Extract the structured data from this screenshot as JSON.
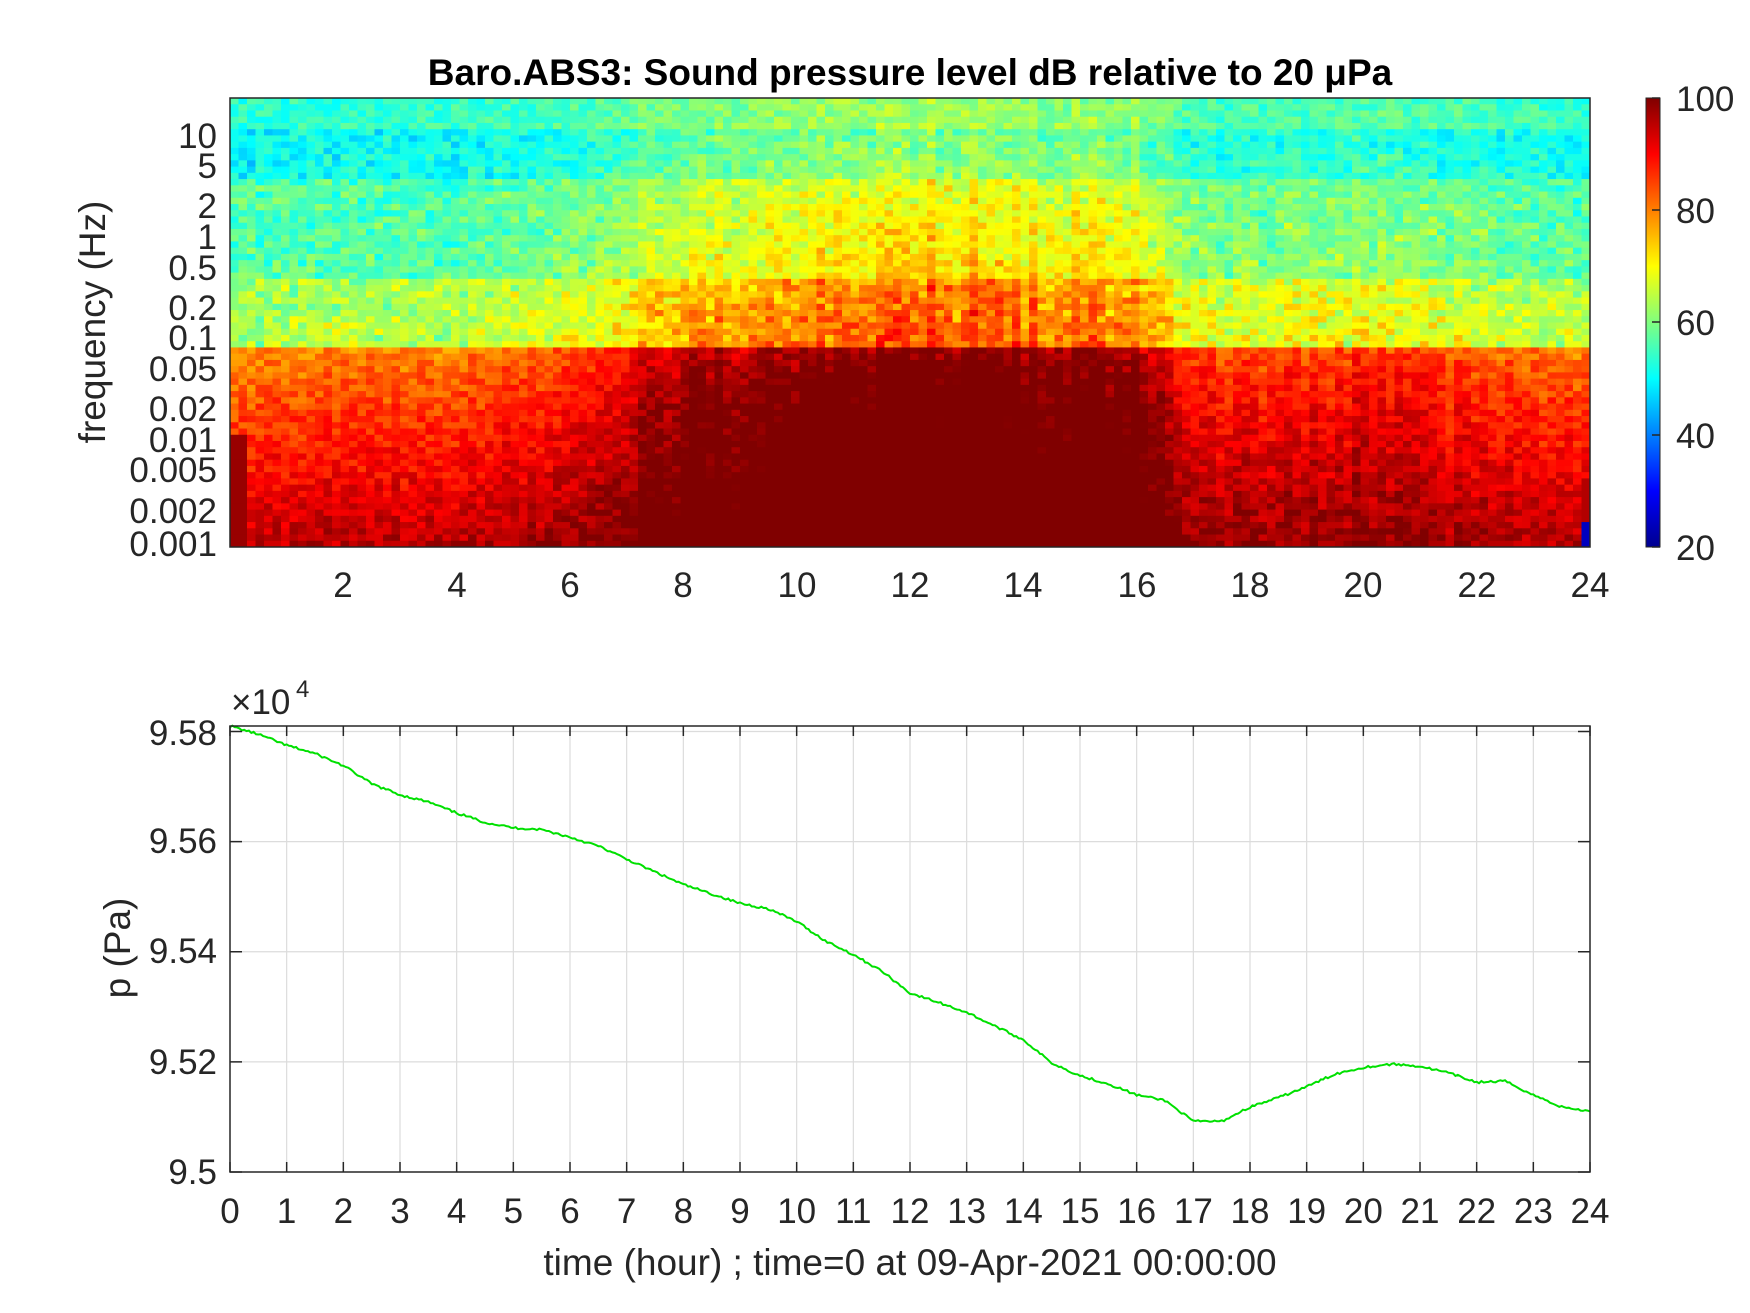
{
  "figure": {
    "spectrogram": {
      "title": "Baro.ABS3: Sound pressure level dB relative to 20 μPa",
      "ylabel": "frequency (Hz)",
      "x_ticks": [
        "2",
        "4",
        "6",
        "8",
        "10",
        "12",
        "14",
        "16",
        "18",
        "20",
        "22",
        "24"
      ],
      "y_ticks": [
        "10",
        "5",
        "2",
        "1",
        "0.5",
        "0.2",
        "0.1",
        "0.05",
        "0.02",
        "0.01",
        "0.005",
        "0.002",
        "0.001"
      ],
      "colorbar_ticks": [
        "100",
        "80",
        "60",
        "40",
        "20"
      ]
    },
    "pressure": {
      "exponent_base": "×10",
      "exponent_power": "4",
      "ylabel": "p (Pa)",
      "xlabel": "time (hour) ; time=0 at 09-Apr-2021 00:00:00",
      "x_ticks": [
        "0",
        "1",
        "2",
        "3",
        "4",
        "5",
        "6",
        "7",
        "8",
        "9",
        "10",
        "11",
        "12",
        "13",
        "14",
        "15",
        "16",
        "17",
        "18",
        "19",
        "20",
        "21",
        "22",
        "23",
        "24"
      ],
      "y_ticks": [
        "9.58",
        "9.56",
        "9.54",
        "9.52",
        "9.5"
      ]
    }
  },
  "chart_data": [
    {
      "type": "heatmap",
      "title": "Baro.ABS3: Sound pressure level dB relative to 20 μPa",
      "xlabel": "",
      "ylabel": "frequency (Hz)",
      "xlim": [
        0,
        24
      ],
      "ylim_hz": [
        0.001,
        20
      ],
      "y_scale": "log",
      "colormap": "jet",
      "clim": [
        20,
        100
      ],
      "colorbar_ticks": [
        20,
        40,
        60,
        80,
        100
      ],
      "x_ticks": [
        2,
        4,
        6,
        8,
        10,
        12,
        14,
        16,
        18,
        20,
        22,
        24
      ],
      "y_ticks": [
        0.001,
        0.002,
        0.005,
        0.01,
        0.02,
        0.05,
        0.1,
        0.2,
        0.5,
        1,
        2,
        5,
        10
      ],
      "description_points": {
        "time_hour": [
          0,
          2,
          4,
          6,
          7,
          8,
          10,
          12,
          14,
          16,
          17,
          18,
          20,
          22,
          24
        ],
        "activity_level": [
          0.15,
          0.2,
          0.2,
          0.35,
          0.55,
          0.75,
          0.85,
          1.0,
          0.95,
          0.8,
          0.35,
          0.35,
          0.4,
          0.3,
          0.2
        ]
      }
    },
    {
      "type": "line",
      "xlabel": "time (hour) ; time=0 at 09-Apr-2021 00:00:00",
      "ylabel": "p (Pa)",
      "xlim": [
        0,
        24
      ],
      "ylim": [
        95000,
        95810
      ],
      "grid": true,
      "line_color": "#00e000",
      "x": [
        0,
        0.5,
        1,
        1.5,
        2,
        2.5,
        3,
        3.5,
        4,
        4.5,
        5,
        5.5,
        6,
        6.5,
        7,
        7.5,
        8,
        8.5,
        9,
        9.5,
        10,
        10.5,
        11,
        11.5,
        12,
        12.5,
        13,
        13.5,
        14,
        14.5,
        15,
        15.5,
        16,
        16.5,
        17,
        17.5,
        18,
        18.5,
        19,
        19.5,
        20,
        20.5,
        21,
        21.5,
        22,
        22.5,
        23,
        23.5,
        24
      ],
      "y": [
        95810,
        95795,
        95775,
        95760,
        95738,
        95705,
        95685,
        95672,
        95652,
        95635,
        95625,
        95622,
        95608,
        95592,
        95568,
        95545,
        95522,
        95505,
        95488,
        95478,
        95455,
        95420,
        95395,
        95365,
        95325,
        95308,
        95290,
        95265,
        95240,
        95198,
        95175,
        95160,
        95140,
        95130,
        95092,
        95092,
        95118,
        95135,
        95155,
        95178,
        95190,
        95196,
        95192,
        95180,
        95163,
        95165,
        95140,
        95118,
        95110
      ]
    }
  ]
}
